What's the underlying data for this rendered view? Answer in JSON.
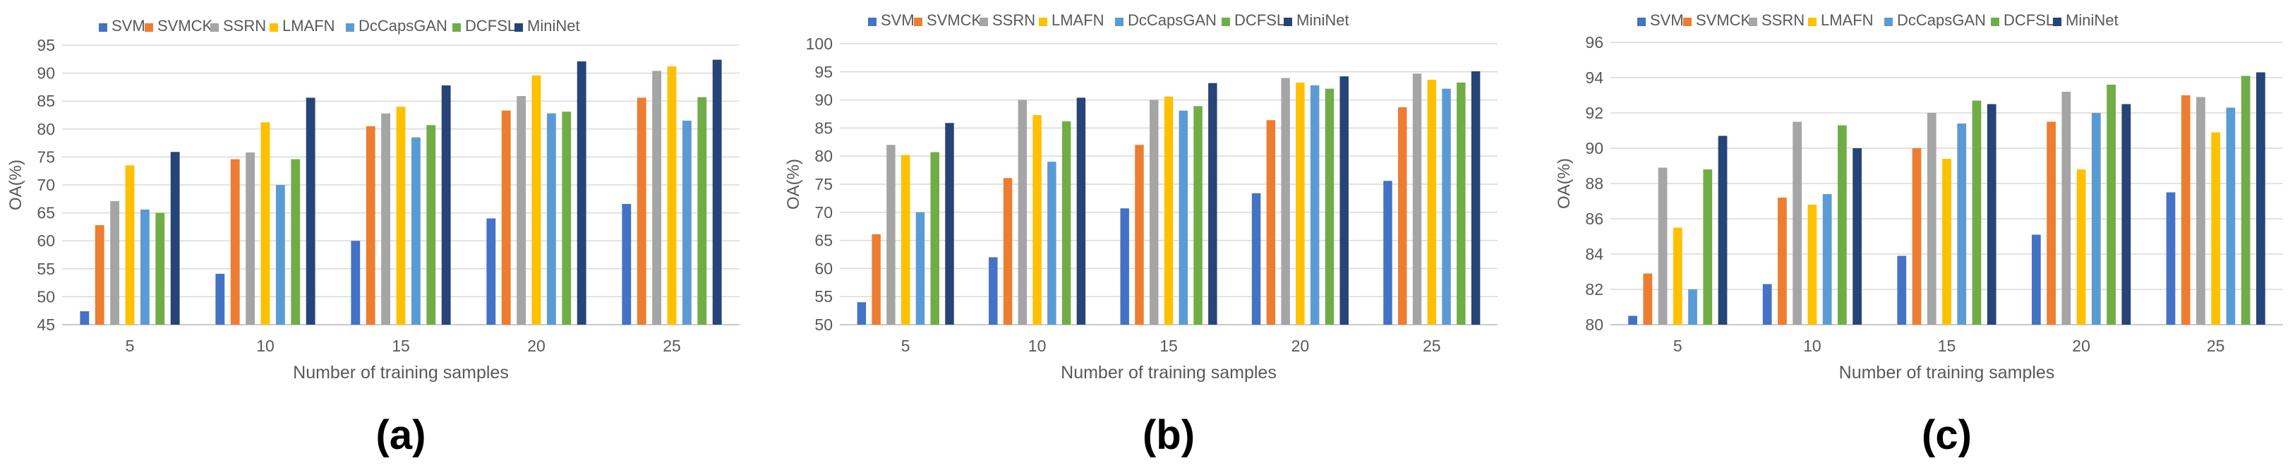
{
  "figure": {
    "legend_entries": [
      "SVM",
      "SVMCK",
      "SSRN",
      "LMAFN",
      "DcCapsGAN",
      "DCFSL",
      "MiniNet"
    ],
    "series_colors": [
      "#4472C4",
      "#ED7D31",
      "#A5A5A5",
      "#FFC000",
      "#5B9BD5",
      "#70AD47",
      "#264478"
    ]
  },
  "chart_data": [
    {
      "type": "bar",
      "panel_label": "(a)",
      "xlabel": "Number of training samples",
      "ylabel": "OA(%)",
      "categories": [
        "5",
        "10",
        "15",
        "20",
        "25"
      ],
      "ylim": [
        45,
        95
      ],
      "yticks": [
        45,
        50,
        55,
        60,
        65,
        70,
        75,
        80,
        85,
        90,
        95
      ],
      "grid": true,
      "legend_position": "top",
      "series": [
        {
          "name": "SVM",
          "values": [
            47.4,
            54.1,
            60.0,
            64.0,
            66.6
          ]
        },
        {
          "name": "SVMCK",
          "values": [
            62.8,
            74.6,
            80.5,
            83.3,
            85.6
          ]
        },
        {
          "name": "SSRN",
          "values": [
            67.1,
            75.8,
            82.8,
            85.9,
            90.4
          ]
        },
        {
          "name": "LMAFN",
          "values": [
            73.5,
            81.2,
            84.0,
            89.6,
            91.2
          ]
        },
        {
          "name": "DcCapsGAN",
          "values": [
            65.6,
            70.0,
            78.5,
            82.8,
            81.5
          ]
        },
        {
          "name": "DCFSL",
          "values": [
            65.0,
            74.6,
            80.7,
            83.1,
            85.7
          ]
        },
        {
          "name": "MiniNet",
          "values": [
            75.9,
            85.6,
            87.8,
            92.1,
            92.4
          ]
        }
      ]
    },
    {
      "type": "bar",
      "panel_label": "(b)",
      "xlabel": "Number of training samples",
      "ylabel": "OA(%)",
      "categories": [
        "5",
        "10",
        "15",
        "20",
        "25"
      ],
      "ylim": [
        50,
        100
      ],
      "yticks": [
        50,
        55,
        60,
        65,
        70,
        75,
        80,
        85,
        90,
        95,
        100
      ],
      "grid": true,
      "legend_position": "top",
      "series": [
        {
          "name": "SVM",
          "values": [
            54.0,
            62.0,
            70.7,
            73.4,
            75.6
          ]
        },
        {
          "name": "SVMCK",
          "values": [
            66.1,
            76.1,
            82.0,
            86.4,
            88.7
          ]
        },
        {
          "name": "SSRN",
          "values": [
            82.0,
            90.0,
            90.0,
            93.9,
            94.7
          ]
        },
        {
          "name": "LMAFN",
          "values": [
            80.2,
            87.3,
            90.6,
            93.1,
            93.6
          ]
        },
        {
          "name": "DcCapsGAN",
          "values": [
            70.0,
            79.0,
            88.1,
            92.6,
            92.0
          ]
        },
        {
          "name": "DCFSL",
          "values": [
            80.7,
            86.2,
            88.9,
            92.0,
            93.1
          ]
        },
        {
          "name": "MiniNet",
          "values": [
            85.9,
            90.4,
            93.0,
            94.2,
            95.1
          ]
        }
      ]
    },
    {
      "type": "bar",
      "panel_label": "(c)",
      "xlabel": "Number of training samples",
      "ylabel": "OA(%)",
      "categories": [
        "5",
        "10",
        "15",
        "20",
        "25"
      ],
      "ylim": [
        80,
        96
      ],
      "yticks": [
        80,
        82,
        84,
        86,
        88,
        90,
        92,
        94,
        96
      ],
      "grid": true,
      "legend_position": "top",
      "series": [
        {
          "name": "SVM",
          "values": [
            80.5,
            82.3,
            83.9,
            85.1,
            87.5
          ]
        },
        {
          "name": "SVMCK",
          "values": [
            82.9,
            87.2,
            90.0,
            91.5,
            93.0
          ]
        },
        {
          "name": "SSRN",
          "values": [
            88.9,
            91.5,
            92.0,
            93.2,
            92.9
          ]
        },
        {
          "name": "LMAFN",
          "values": [
            85.5,
            86.8,
            89.4,
            88.8,
            90.9
          ]
        },
        {
          "name": "DcCapsGAN",
          "values": [
            82.0,
            87.4,
            91.4,
            92.0,
            92.3
          ]
        },
        {
          "name": "DCFSL",
          "values": [
            88.8,
            91.3,
            92.7,
            93.6,
            94.1
          ]
        },
        {
          "name": "MiniNet",
          "values": [
            90.7,
            90.0,
            92.5,
            92.5,
            94.3
          ]
        }
      ]
    }
  ]
}
